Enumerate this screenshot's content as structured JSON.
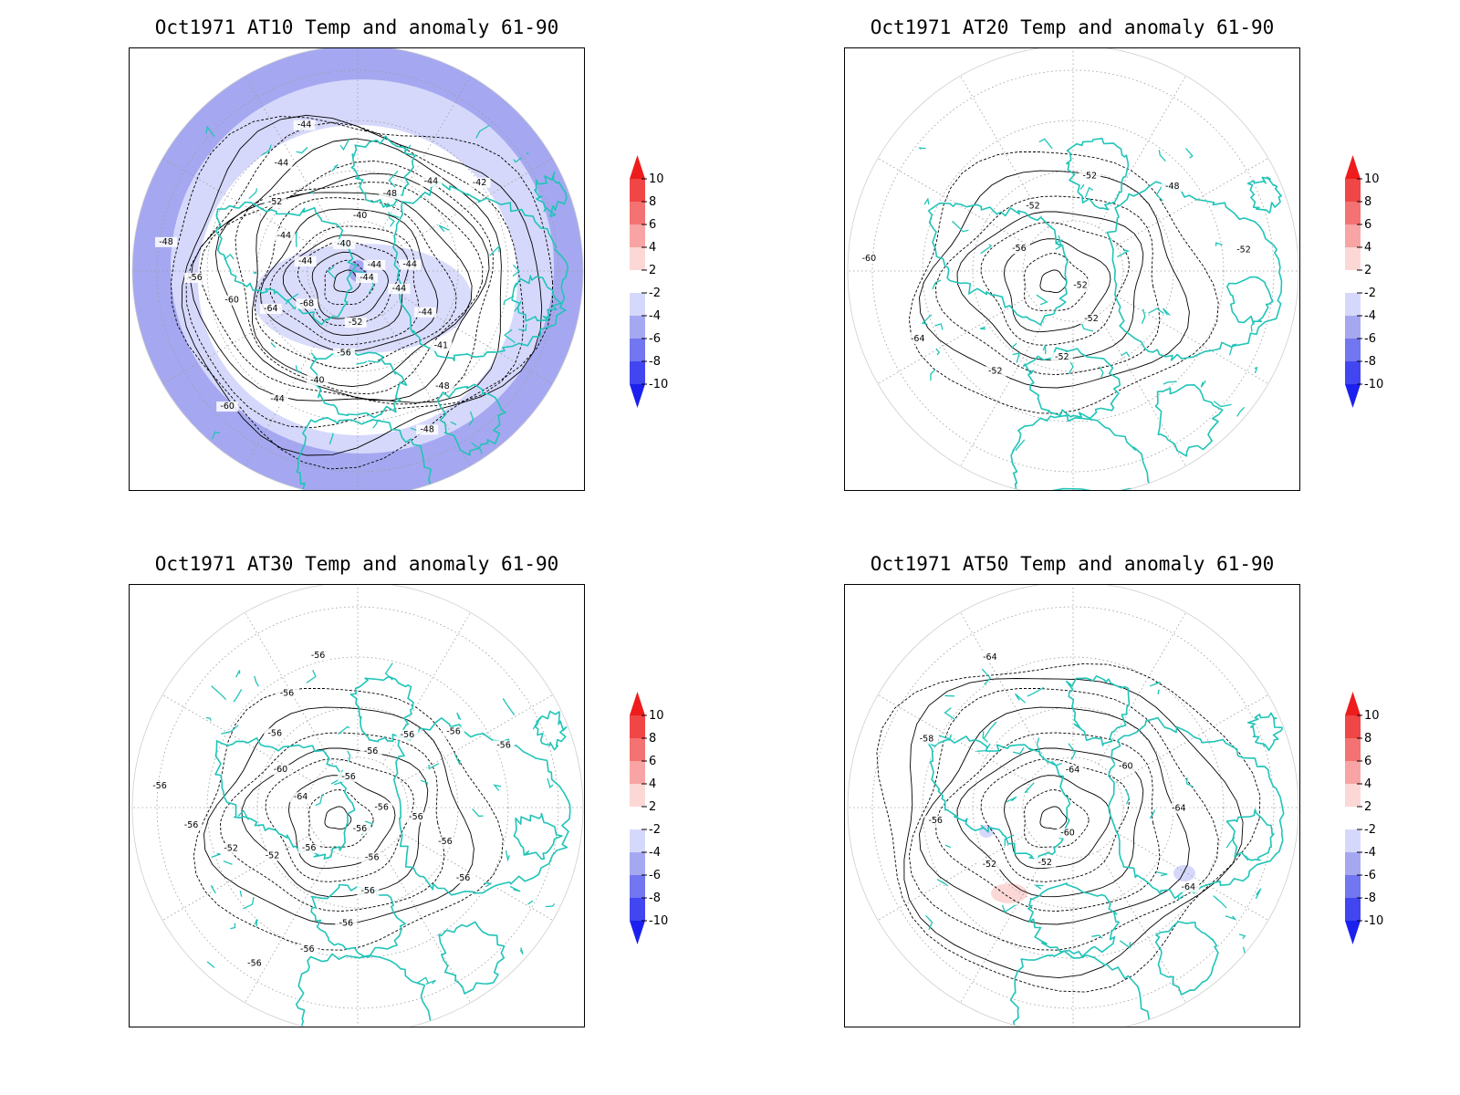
{
  "colors": {
    "coast": "#20c4b8",
    "contour": "#000000",
    "grid": "#9a9a9a",
    "anomaly_cold_1": "#d6d8fb",
    "anomaly_cold_2": "#a5a8f0",
    "anomaly_warm_1": "#fbd8d6"
  },
  "colorbar": {
    "levels": [
      "10",
      "8",
      "6",
      "4",
      "2",
      "-2",
      "-4",
      "-6",
      "-8",
      "-10"
    ],
    "colors": [
      "#ee1c1c",
      "#f04646",
      "#f47272",
      "#f8a4a4",
      "#fbd8d6",
      "#ffffff",
      "#d6d8fb",
      "#a5a8f0",
      "#7276f0",
      "#4246f0",
      "#1c20ee"
    ]
  },
  "panels": [
    {
      "id": "at10",
      "title": "Oct1971 AT10 Temp and anomaly 61-90",
      "anomaly_fill": "cold-ring",
      "contour_labels": [
        "-44",
        "-44",
        "-44",
        "-41",
        "-48",
        "-48",
        "-52",
        "-56",
        "-40",
        "-44",
        "-60",
        "-68",
        "-64",
        "-60",
        "-56",
        "-48",
        "-44",
        "-44",
        "-52",
        "-44",
        "-44",
        "-40",
        "-40",
        "-48",
        "-44",
        "-42",
        "-44",
        "-44"
      ]
    },
    {
      "id": "at20",
      "title": "Oct1971 AT20 Temp and anomaly 61-90",
      "anomaly_fill": "none",
      "contour_labels": [
        "-52",
        "-52",
        "-52",
        "-52",
        "-64",
        "-60",
        "-56",
        "-52",
        "-52",
        "-48",
        "-52"
      ]
    },
    {
      "id": "at30",
      "title": "Oct1971 AT30 Temp and anomaly 61-90",
      "anomaly_fill": "none",
      "contour_labels": [
        "-56",
        "-56",
        "-56",
        "-56",
        "-56",
        "-56",
        "-56",
        "-52",
        "-52",
        "-56",
        "-56",
        "-64",
        "-60",
        "-56",
        "-56",
        "-56",
        "-56",
        "-56",
        "-56",
        "-56",
        "-56",
        "-56",
        "-56",
        "-56",
        "-56"
      ]
    },
    {
      "id": "at50",
      "title": "Oct1971 AT50 Temp and anomaly 61-90",
      "anomaly_fill": "small-patches",
      "contour_labels": [
        "-60",
        "-52",
        "-52",
        "-56",
        "-58",
        "-64",
        "-64",
        "-60",
        "-64",
        "-64"
      ]
    }
  ]
}
